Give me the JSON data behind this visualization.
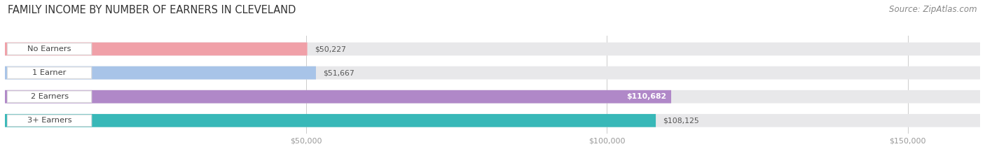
{
  "title": "FAMILY INCOME BY NUMBER OF EARNERS IN CLEVELAND",
  "source": "Source: ZipAtlas.com",
  "categories": [
    "No Earners",
    "1 Earner",
    "2 Earners",
    "3+ Earners"
  ],
  "values": [
    50227,
    51667,
    110682,
    108125
  ],
  "bar_colors": [
    "#F0A0A8",
    "#A8C4E8",
    "#B088C8",
    "#38B8B8"
  ],
  "value_labels": [
    "$50,227",
    "$51,667",
    "$110,682",
    "$108,125"
  ],
  "value_inside": [
    false,
    false,
    true,
    false
  ],
  "x_ticks": [
    50000,
    100000,
    150000
  ],
  "x_tick_labels": [
    "$50,000",
    "$100,000",
    "$150,000"
  ],
  "xlim": [
    0,
    162000
  ],
  "background_color": "#ffffff",
  "bar_bg_color": "#e8e8ea",
  "title_fontsize": 10.5,
  "source_fontsize": 8.5,
  "bar_height": 0.55,
  "pill_color": "#ffffff",
  "pill_border_color": "#cccccc"
}
